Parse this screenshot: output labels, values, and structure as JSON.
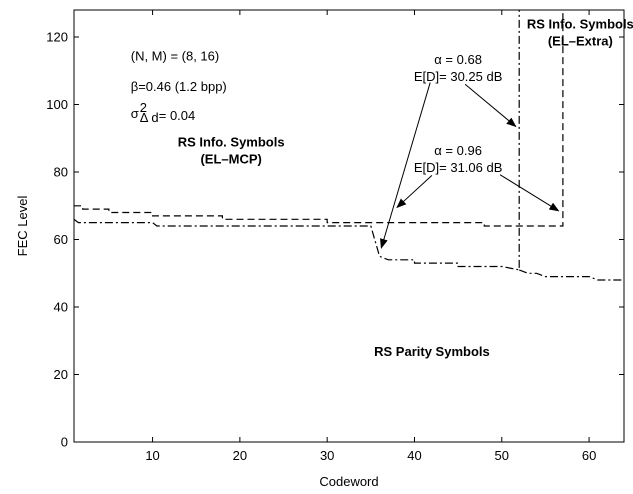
{
  "chart_data": {
    "type": "line",
    "title": "",
    "xlabel": "Codeword",
    "ylabel": "FEC Level",
    "xlim": [
      1,
      64
    ],
    "ylim": [
      0,
      128
    ],
    "xticks": [
      10,
      20,
      30,
      40,
      50,
      60
    ],
    "yticks": [
      0,
      20,
      40,
      60,
      80,
      100,
      120
    ],
    "grid": false,
    "legend": "none",
    "series": [
      {
        "style": "dashed",
        "points": [
          [
            1,
            70
          ],
          [
            2,
            70
          ],
          [
            2,
            69
          ],
          [
            5,
            69
          ],
          [
            5,
            68
          ],
          [
            10,
            68
          ],
          [
            10,
            67
          ],
          [
            18,
            67
          ],
          [
            18,
            66
          ],
          [
            30,
            66
          ],
          [
            30,
            65
          ],
          [
            48,
            65
          ],
          [
            48,
            64
          ],
          [
            57,
            64
          ],
          [
            57,
            128
          ]
        ]
      },
      {
        "style": "dash-dot",
        "points": [
          [
            1,
            66
          ],
          [
            1.5,
            65
          ],
          [
            10,
            65
          ],
          [
            10.5,
            64
          ],
          [
            35,
            64
          ],
          [
            36,
            55
          ],
          [
            37,
            54
          ],
          [
            40,
            54
          ],
          [
            40,
            53
          ],
          [
            45,
            53
          ],
          [
            45,
            52
          ],
          [
            50,
            52
          ],
          [
            52,
            51
          ],
          [
            52,
            128
          ]
        ]
      },
      {
        "style": "dash-dot",
        "points": [
          [
            52,
            51
          ],
          [
            53,
            50
          ],
          [
            54,
            50
          ],
          [
            55,
            49
          ],
          [
            57,
            49
          ],
          [
            57,
            49
          ],
          [
            60,
            49
          ],
          [
            61,
            48
          ],
          [
            64,
            48
          ]
        ]
      }
    ],
    "annotations": [
      {
        "id": "nm",
        "text": "(N, M) = (8, 16)",
        "x": 7.5,
        "y": 113
      },
      {
        "id": "beta",
        "text": "β=0.46   (1.2 bpp)",
        "x": 7.5,
        "y": 104
      },
      {
        "id": "sigma_main",
        "text": "σ",
        "sub": "Δ d",
        "sup": "2",
        "value": "= 0.04",
        "x": 7.5,
        "y": 96
      },
      {
        "id": "alpha1",
        "text": "α = 0.68",
        "x": 45,
        "y": 112
      },
      {
        "id": "ed1",
        "text": "E[D]= 30.25 dB",
        "x": 45,
        "y": 107
      },
      {
        "id": "alpha2",
        "text": "α = 0.96",
        "x": 45,
        "y": 85
      },
      {
        "id": "ed2",
        "text": "E[D]=  31.06 dB",
        "x": 45,
        "y": 80
      },
      {
        "id": "info_extra1",
        "text": "RS Info. Symbols",
        "x": 59,
        "y": 122.5,
        "bold": true
      },
      {
        "id": "info_extra2",
        "text": "(EL–Extra)",
        "x": 59,
        "y": 117.5,
        "bold": true
      },
      {
        "id": "info_mcp1",
        "text": "RS Info. Symbols",
        "x": 19,
        "y": 87.5,
        "bold": true
      },
      {
        "id": "info_mcp2",
        "text": "(EL–MCP)",
        "x": 19,
        "y": 82.5,
        "bold": true
      },
      {
        "id": "parity",
        "text": "RS Parity Symbols",
        "x": 42,
        "y": 25.5,
        "bold": true
      }
    ],
    "arrows": [
      {
        "from": [
          41.8,
          106.5
        ],
        "to": [
          36.2,
          57.5
        ]
      },
      {
        "from": [
          45.8,
          106.0
        ],
        "to": [
          51.6,
          93.5
        ]
      },
      {
        "from": [
          42.0,
          79.0
        ],
        "to": [
          38.0,
          69.5
        ]
      },
      {
        "from": [
          49.8,
          79.2
        ],
        "to": [
          56.5,
          68.5
        ]
      }
    ]
  }
}
